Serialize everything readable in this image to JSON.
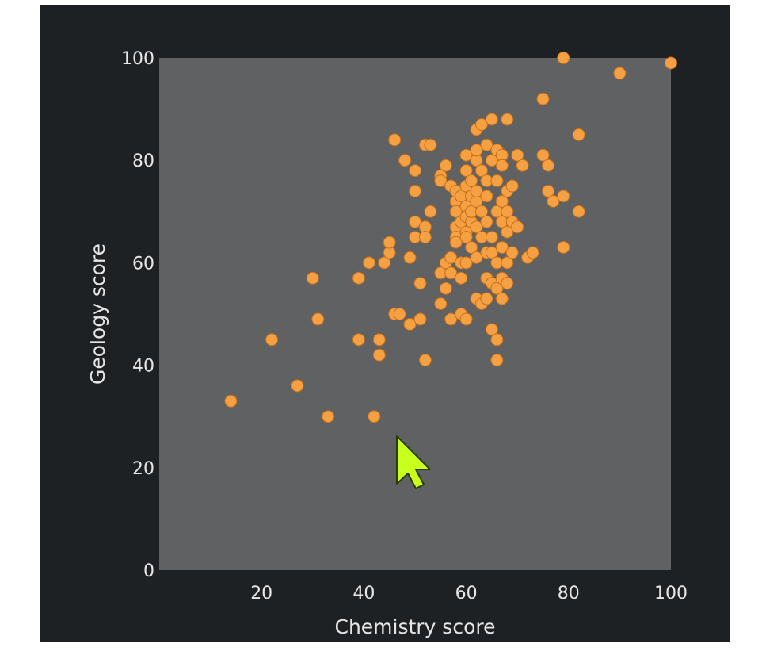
{
  "colors": {
    "background": "#1e2124",
    "plot_area": "#5f6163",
    "point_fill": "#f5a043",
    "point_stroke": "#c4701c",
    "text": "#e6e6e6",
    "cursor": "#c8ff1e"
  },
  "cursor_icon": "arrow-pointer-icon",
  "chart_data": {
    "type": "scatter",
    "xlabel": "Chemistry score",
    "ylabel": "Geology score",
    "xlim": [
      0,
      100
    ],
    "ylim": [
      0,
      100
    ],
    "xticks": [
      "20",
      "40",
      "60",
      "80",
      "100"
    ],
    "yticks": [
      "0",
      "20",
      "40",
      "60",
      "80",
      "100"
    ],
    "grid": false,
    "points": [
      [
        14,
        33
      ],
      [
        22,
        45
      ],
      [
        27,
        36
      ],
      [
        30,
        57
      ],
      [
        31,
        49
      ],
      [
        33,
        30
      ],
      [
        39,
        57
      ],
      [
        39,
        45
      ],
      [
        41,
        60
      ],
      [
        42,
        30
      ],
      [
        43,
        42
      ],
      [
        43,
        45
      ],
      [
        44,
        60
      ],
      [
        45,
        62
      ],
      [
        45,
        64
      ],
      [
        46,
        84
      ],
      [
        46,
        50
      ],
      [
        47,
        50
      ],
      [
        48,
        80
      ],
      [
        49,
        61
      ],
      [
        49,
        48
      ],
      [
        50,
        65
      ],
      [
        50,
        78
      ],
      [
        50,
        74
      ],
      [
        50,
        68
      ],
      [
        51,
        49
      ],
      [
        51,
        56
      ],
      [
        52,
        67
      ],
      [
        52,
        65
      ],
      [
        52,
        41
      ],
      [
        52,
        83
      ],
      [
        53,
        70
      ],
      [
        53,
        83
      ],
      [
        55,
        58
      ],
      [
        55,
        52
      ],
      [
        55,
        77
      ],
      [
        55,
        76
      ],
      [
        56,
        79
      ],
      [
        56,
        55
      ],
      [
        56,
        60
      ],
      [
        57,
        49
      ],
      [
        57,
        61
      ],
      [
        57,
        75
      ],
      [
        57,
        58
      ],
      [
        58,
        67
      ],
      [
        58,
        65
      ],
      [
        58,
        64
      ],
      [
        58,
        72
      ],
      [
        58,
        70
      ],
      [
        58,
        74
      ],
      [
        59,
        57
      ],
      [
        59,
        50
      ],
      [
        59,
        68
      ],
      [
        59,
        73
      ],
      [
        59,
        60
      ],
      [
        60,
        66
      ],
      [
        60,
        71
      ],
      [
        60,
        69
      ],
      [
        60,
        65
      ],
      [
        60,
        60
      ],
      [
        60,
        78
      ],
      [
        60,
        81
      ],
      [
        60,
        49
      ],
      [
        60,
        75
      ],
      [
        61,
        73
      ],
      [
        61,
        63
      ],
      [
        61,
        68
      ],
      [
        61,
        70
      ],
      [
        61,
        76
      ],
      [
        62,
        61
      ],
      [
        62,
        53
      ],
      [
        62,
        72
      ],
      [
        62,
        67
      ],
      [
        62,
        80
      ],
      [
        62,
        82
      ],
      [
        62,
        86
      ],
      [
        62,
        74
      ],
      [
        63,
        87
      ],
      [
        63,
        78
      ],
      [
        63,
        70
      ],
      [
        63,
        65
      ],
      [
        63,
        52
      ],
      [
        64,
        83
      ],
      [
        64,
        76
      ],
      [
        64,
        68
      ],
      [
        64,
        62
      ],
      [
        64,
        57
      ],
      [
        64,
        53
      ],
      [
        64,
        73
      ],
      [
        65,
        88
      ],
      [
        65,
        80
      ],
      [
        65,
        65
      ],
      [
        65,
        62
      ],
      [
        65,
        56
      ],
      [
        65,
        47
      ],
      [
        66,
        76
      ],
      [
        66,
        70
      ],
      [
        66,
        60
      ],
      [
        66,
        55
      ],
      [
        66,
        45
      ],
      [
        66,
        82
      ],
      [
        66,
        41
      ],
      [
        67,
        72
      ],
      [
        67,
        68
      ],
      [
        67,
        57
      ],
      [
        67,
        53
      ],
      [
        67,
        63
      ],
      [
        67,
        81
      ],
      [
        67,
        79
      ],
      [
        68,
        74
      ],
      [
        68,
        70
      ],
      [
        68,
        66
      ],
      [
        68,
        60
      ],
      [
        68,
        56
      ],
      [
        68,
        88
      ],
      [
        69,
        75
      ],
      [
        69,
        68
      ],
      [
        69,
        62
      ],
      [
        70,
        67
      ],
      [
        70,
        81
      ],
      [
        71,
        79
      ],
      [
        72,
        61
      ],
      [
        73,
        62
      ],
      [
        75,
        92
      ],
      [
        75,
        81
      ],
      [
        76,
        74
      ],
      [
        76,
        79
      ],
      [
        77,
        72
      ],
      [
        79,
        73
      ],
      [
        79,
        63
      ],
      [
        79,
        100
      ],
      [
        82,
        70
      ],
      [
        82,
        85
      ],
      [
        90,
        97
      ],
      [
        100,
        99
      ]
    ]
  }
}
